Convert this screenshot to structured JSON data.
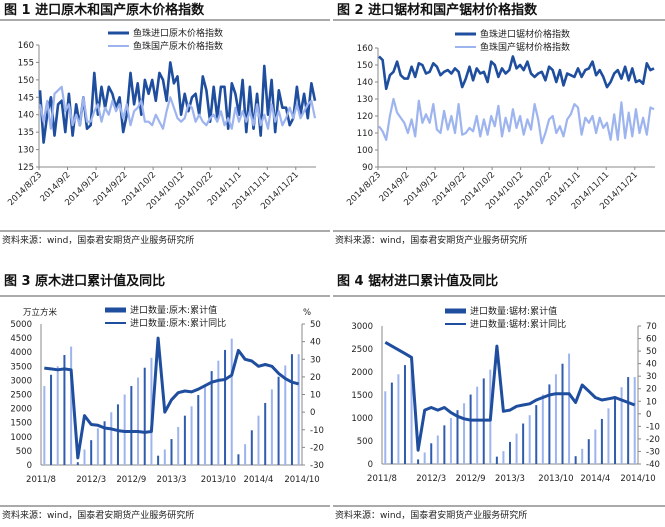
{
  "chart_data": [
    {
      "type": "line",
      "title": "图 1  进口原木和国产原木价格指数",
      "source": "资料来源：wind，国泰君安期货产业服务研究所",
      "ylim": [
        125,
        160
      ],
      "yticks": [
        125,
        130,
        135,
        140,
        145,
        150,
        155,
        160
      ],
      "xticks": [
        "2014/8/23",
        "2014/9/2",
        "2014/9/12",
        "2014/9/22",
        "2014/10/2",
        "2014/10/12",
        "2014/10/22",
        "2014/11/1",
        "2014/11/11",
        "2014/11/21"
      ],
      "series": [
        {
          "name": "鱼珠进口原木价格指数",
          "color": "#1f4e9e",
          "values": [
            147,
            132,
            140,
            145,
            134,
            143,
            144,
            135,
            146,
            134,
            143,
            137,
            145,
            136,
            137,
            152,
            140,
            148,
            142,
            148,
            146,
            142,
            145,
            135,
            140,
            152,
            143,
            149,
            140,
            150,
            146,
            150,
            144,
            152,
            150,
            144,
            155,
            149,
            151,
            140,
            146,
            141,
            145,
            146,
            140,
            151,
            147,
            138,
            148,
            139,
            148,
            148,
            136,
            149,
            146,
            140,
            150,
            135,
            148,
            136,
            146,
            134,
            154,
            140,
            150,
            135,
            147,
            142,
            142,
            137,
            139,
            148,
            140,
            146,
            139,
            149,
            144
          ]
        },
        {
          "name": "鱼珠国产原木价格指数",
          "color": "#9db4ef",
          "values": [
            143,
            138,
            144,
            136,
            146,
            147,
            148,
            141,
            143,
            137,
            140,
            137,
            145,
            138,
            138,
            141,
            143,
            138,
            142,
            140,
            144,
            141,
            143,
            139,
            143,
            137,
            141,
            142,
            144,
            138,
            138,
            137,
            140,
            138,
            136,
            141,
            145,
            142,
            139,
            138,
            139,
            143,
            142,
            138,
            140,
            138,
            137,
            139,
            140,
            138,
            141,
            137,
            139,
            136,
            142,
            138,
            141,
            138,
            141,
            137,
            143,
            137,
            140,
            136,
            143,
            138,
            141,
            137,
            139,
            142,
            139,
            143,
            139,
            141,
            143,
            144,
            139
          ]
        }
      ]
    },
    {
      "type": "line",
      "title": "图 2  进口锯材和国产锯材价格指数",
      "source": "资料来源：wind，国泰君安期货产业服务研究所",
      "ylim": [
        90,
        160
      ],
      "yticks": [
        90,
        100,
        110,
        120,
        130,
        140,
        150,
        160
      ],
      "xticks": [
        "2014/8/23",
        "2014/9/2",
        "2014/9/12",
        "2014/9/22",
        "2014/10/2",
        "2014/10/12",
        "2014/10/22",
        "2014/11/1",
        "2014/11/11",
        "2014/11/21"
      ],
      "series": [
        {
          "name": "鱼珠进口锯材价格指数",
          "color": "#1f4e9e",
          "values": [
            155,
            153,
            136,
            144,
            146,
            152,
            144,
            142,
            142,
            149,
            143,
            151,
            150,
            145,
            146,
            151,
            149,
            144,
            146,
            147,
            145,
            148,
            146,
            137,
            142,
            149,
            141,
            148,
            145,
            146,
            140,
            152,
            150,
            143,
            148,
            145,
            147,
            155,
            148,
            150,
            147,
            152,
            145,
            143,
            145,
            146,
            141,
            149,
            147,
            140,
            147,
            138,
            145,
            144,
            143,
            148,
            143,
            147,
            148,
            152,
            144,
            147,
            143,
            137,
            140,
            145,
            147,
            142,
            149,
            141,
            148,
            140,
            141,
            139,
            151,
            147,
            148
          ]
        },
        {
          "name": "鱼珠国产锯材价格指数",
          "color": "#9db4ef",
          "values": [
            114,
            111,
            106,
            120,
            130,
            122,
            119,
            116,
            110,
            118,
            108,
            129,
            116,
            121,
            116,
            127,
            112,
            110,
            123,
            112,
            120,
            110,
            127,
            109,
            110,
            113,
            111,
            120,
            108,
            118,
            109,
            120,
            114,
            126,
            108,
            119,
            111,
            124,
            113,
            120,
            109,
            118,
            112,
            127,
            118,
            104,
            110,
            118,
            120,
            110,
            114,
            108,
            118,
            121,
            127,
            125,
            109,
            119,
            116,
            120,
            110,
            119,
            113,
            116,
            106,
            121,
            106,
            128,
            107,
            122,
            108,
            124,
            110,
            119,
            109,
            125,
            124
          ]
        }
      ]
    },
    {
      "type": "bar+line",
      "title": "图 3 原木进口累计值及同比",
      "source": "资料来源：wind，国泰君安期货产业服务研究所",
      "ylabel_left": "万立方米",
      "ylabel_right": "%",
      "ylim_left": [
        0,
        5000
      ],
      "yticks_left": [
        0,
        500,
        1000,
        1500,
        2000,
        2500,
        3000,
        3500,
        4000,
        4500,
        5000
      ],
      "ylim_right": [
        -30,
        50
      ],
      "yticks_right": [
        -30,
        -20,
        -10,
        0,
        10,
        20,
        30,
        40,
        50
      ],
      "xticks": [
        "2011/8",
        "2012/3",
        "2012/9",
        "2013/3",
        "2013/10",
        "2014/4",
        "2014/10"
      ],
      "categories": [
        "2011/8",
        "2011/9",
        "2011/10",
        "2011/11",
        "2011/12",
        "2012/1",
        "2012/2",
        "2012/3",
        "2012/4",
        "2012/5",
        "2012/6",
        "2012/7",
        "2012/8",
        "2012/9",
        "2012/10",
        "2012/11",
        "2012/12",
        "2013/1",
        "2013/2",
        "2013/3",
        "2013/4",
        "2013/5",
        "2013/6",
        "2013/7",
        "2013/8",
        "2013/9",
        "2013/10",
        "2013/11",
        "2013/12",
        "2014/1",
        "2014/2",
        "2014/3",
        "2014/4",
        "2014/5",
        "2014/6",
        "2014/7",
        "2014/8",
        "2014/9",
        "2014/10"
      ],
      "series": [
        {
          "name": "进口数量:原木:累计值",
          "axis": "left",
          "color": "#6f8fd0",
          "values": [
            2800,
            3200,
            3500,
            3900,
            4200,
            100,
            550,
            880,
            1300,
            1550,
            1870,
            2150,
            2500,
            2800,
            3100,
            3450,
            3800,
            330,
            550,
            920,
            1350,
            1750,
            2080,
            2480,
            2850,
            3330,
            3700,
            4080,
            4480,
            380,
            740,
            1230,
            1750,
            2200,
            2680,
            3130,
            3530,
            3930,
            3930
          ]
        },
        {
          "name": "进口数量:原木:累计同比",
          "axis": "right",
          "color": "#1f4e9e",
          "values": [
            25,
            24.5,
            24,
            24.5,
            24,
            -26,
            -2,
            -7,
            -7.5,
            -9,
            -9.5,
            -10.5,
            -11,
            -11,
            -11,
            -11.5,
            -11,
            42,
            0,
            7,
            11,
            12,
            11.5,
            13,
            15,
            17,
            18,
            18.5,
            21,
            35,
            30,
            29,
            26,
            27,
            26,
            22,
            19,
            17,
            16
          ]
        }
      ]
    },
    {
      "type": "bar+line",
      "title": "图 4 锯材进口累计值及同比",
      "source": "资料来源：wind，国泰君安期货产业服务研究所",
      "ylim_left": [
        0,
        3000
      ],
      "yticks_left": [
        0,
        500,
        1000,
        1500,
        2000,
        2500,
        3000
      ],
      "ylim_right": [
        -40,
        70
      ],
      "yticks_right": [
        -40,
        -30,
        -20,
        -10,
        0,
        10,
        20,
        30,
        40,
        50,
        60,
        70
      ],
      "xticks": [
        "2011/8",
        "2012/3",
        "2012/9",
        "2013/3",
        "2013/10",
        "2014/4",
        "2014/10"
      ],
      "categories": [
        "2011/8",
        "2011/9",
        "2011/10",
        "2011/11",
        "2011/12",
        "2012/1",
        "2012/2",
        "2012/3",
        "2012/4",
        "2012/5",
        "2012/6",
        "2012/7",
        "2012/8",
        "2012/9",
        "2012/10",
        "2012/11",
        "2012/12",
        "2013/1",
        "2013/2",
        "2013/3",
        "2013/4",
        "2013/5",
        "2013/6",
        "2013/7",
        "2013/8",
        "2013/9",
        "2013/10",
        "2013/11",
        "2013/12",
        "2014/1",
        "2014/2",
        "2014/3",
        "2014/4",
        "2014/5",
        "2014/6",
        "2014/7",
        "2014/8",
        "2014/9",
        "2014/10"
      ],
      "series": [
        {
          "name": "进口数量:锯材:累计值",
          "axis": "left",
          "color": "#6f8fd0",
          "values": [
            1580,
            1770,
            1950,
            2150,
            2350,
            100,
            250,
            450,
            620,
            840,
            1000,
            1170,
            1320,
            1510,
            1680,
            1860,
            2050,
            160,
            280,
            480,
            660,
            880,
            1060,
            1280,
            1510,
            1730,
            1950,
            2180,
            2400,
            170,
            330,
            540,
            750,
            980,
            1210,
            1450,
            1670,
            1890,
            1890
          ]
        },
        {
          "name": "进口数量:锯材:累计同比",
          "axis": "right",
          "color": "#1f4e9e",
          "values": [
            57,
            54,
            51,
            48,
            45,
            -29,
            3,
            5,
            3,
            5,
            1,
            -2,
            -4,
            -5,
            -5,
            -5,
            -5,
            54,
            2,
            3,
            6,
            7,
            8,
            11,
            13,
            15,
            16,
            16,
            16,
            9,
            23,
            18,
            13,
            11,
            12,
            13,
            11,
            9,
            7
          ]
        }
      ]
    }
  ]
}
